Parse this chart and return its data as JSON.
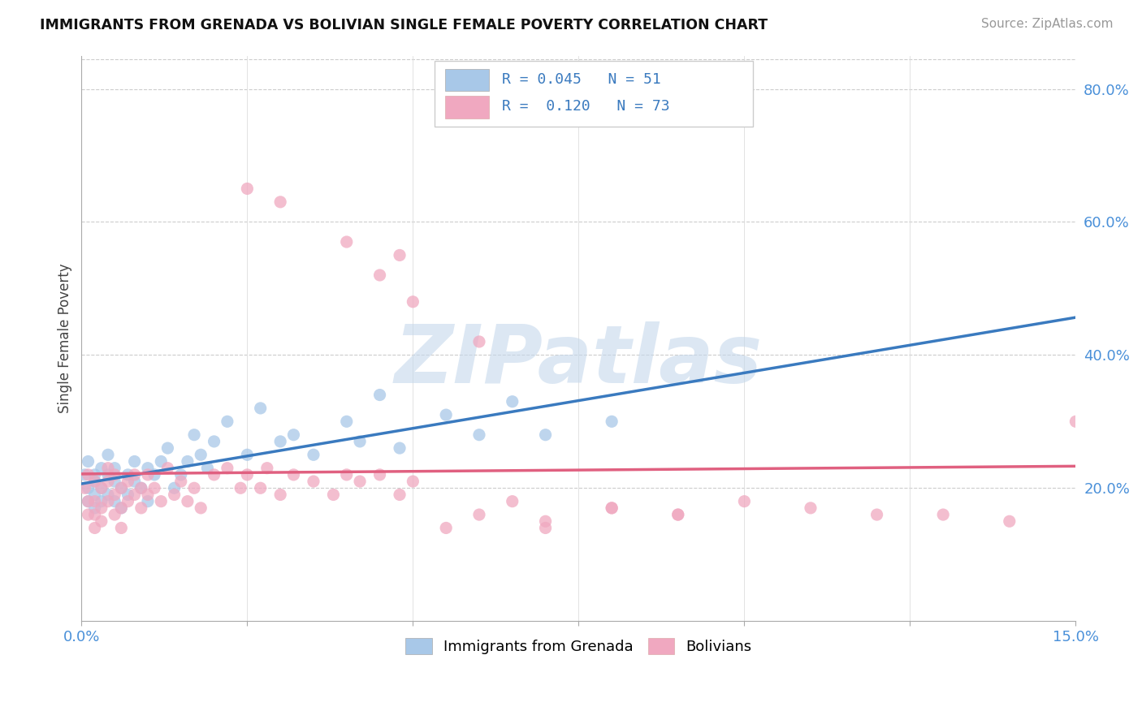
{
  "title": "IMMIGRANTS FROM GRENADA VS BOLIVIAN SINGLE FEMALE POVERTY CORRELATION CHART",
  "source_text": "Source: ZipAtlas.com",
  "ylabel": "Single Female Poverty",
  "xlim": [
    0.0,
    0.15
  ],
  "ylim": [
    0.0,
    0.85
  ],
  "blue_color": "#a8c8e8",
  "pink_color": "#f0a8c0",
  "blue_line_color": "#3a7abf",
  "pink_line_color": "#e06080",
  "legend_blue_label": "Immigrants from Grenada",
  "legend_pink_label": "Bolivians",
  "R_blue": 0.045,
  "N_blue": 51,
  "R_pink": 0.12,
  "N_pink": 73,
  "watermark": "ZIPatlas",
  "watermark_color": "#c5d8ec",
  "blue_x": [
    0.0005,
    0.001,
    0.001,
    0.001,
    0.002,
    0.002,
    0.002,
    0.002,
    0.003,
    0.003,
    0.003,
    0.004,
    0.004,
    0.004,
    0.005,
    0.005,
    0.005,
    0.006,
    0.006,
    0.007,
    0.007,
    0.008,
    0.008,
    0.009,
    0.01,
    0.01,
    0.011,
    0.012,
    0.013,
    0.014,
    0.015,
    0.016,
    0.017,
    0.018,
    0.019,
    0.02,
    0.022,
    0.025,
    0.027,
    0.03,
    0.032,
    0.035,
    0.04,
    0.042,
    0.045,
    0.048,
    0.055,
    0.06,
    0.065,
    0.07,
    0.08
  ],
  "blue_y": [
    0.22,
    0.24,
    0.2,
    0.18,
    0.22,
    0.19,
    0.17,
    0.21,
    0.23,
    0.2,
    0.18,
    0.22,
    0.19,
    0.25,
    0.21,
    0.18,
    0.23,
    0.2,
    0.17,
    0.22,
    0.19,
    0.24,
    0.21,
    0.2,
    0.23,
    0.18,
    0.22,
    0.24,
    0.26,
    0.2,
    0.22,
    0.24,
    0.28,
    0.25,
    0.23,
    0.27,
    0.3,
    0.25,
    0.32,
    0.27,
    0.28,
    0.25,
    0.3,
    0.27,
    0.34,
    0.26,
    0.31,
    0.28,
    0.33,
    0.28,
    0.3
  ],
  "pink_x": [
    0.0005,
    0.001,
    0.001,
    0.001,
    0.002,
    0.002,
    0.002,
    0.002,
    0.003,
    0.003,
    0.003,
    0.004,
    0.004,
    0.004,
    0.005,
    0.005,
    0.005,
    0.006,
    0.006,
    0.006,
    0.007,
    0.007,
    0.008,
    0.008,
    0.009,
    0.009,
    0.01,
    0.01,
    0.011,
    0.012,
    0.013,
    0.014,
    0.015,
    0.016,
    0.017,
    0.018,
    0.02,
    0.022,
    0.024,
    0.025,
    0.027,
    0.028,
    0.03,
    0.032,
    0.035,
    0.038,
    0.04,
    0.042,
    0.045,
    0.048,
    0.05,
    0.055,
    0.06,
    0.065,
    0.07,
    0.08,
    0.09,
    0.1,
    0.11,
    0.12,
    0.13,
    0.14,
    0.15,
    0.025,
    0.03,
    0.04,
    0.045,
    0.048,
    0.05,
    0.06,
    0.07,
    0.08,
    0.09
  ],
  "pink_y": [
    0.2,
    0.22,
    0.18,
    0.16,
    0.21,
    0.18,
    0.16,
    0.14,
    0.2,
    0.17,
    0.15,
    0.21,
    0.18,
    0.23,
    0.19,
    0.16,
    0.22,
    0.2,
    0.17,
    0.14,
    0.21,
    0.18,
    0.22,
    0.19,
    0.2,
    0.17,
    0.22,
    0.19,
    0.2,
    0.18,
    0.23,
    0.19,
    0.21,
    0.18,
    0.2,
    0.17,
    0.22,
    0.23,
    0.2,
    0.22,
    0.2,
    0.23,
    0.19,
    0.22,
    0.21,
    0.19,
    0.22,
    0.21,
    0.22,
    0.19,
    0.21,
    0.14,
    0.16,
    0.18,
    0.15,
    0.17,
    0.16,
    0.18,
    0.17,
    0.16,
    0.16,
    0.15,
    0.3,
    0.65,
    0.63,
    0.57,
    0.52,
    0.55,
    0.48,
    0.42,
    0.14,
    0.17,
    0.16
  ]
}
